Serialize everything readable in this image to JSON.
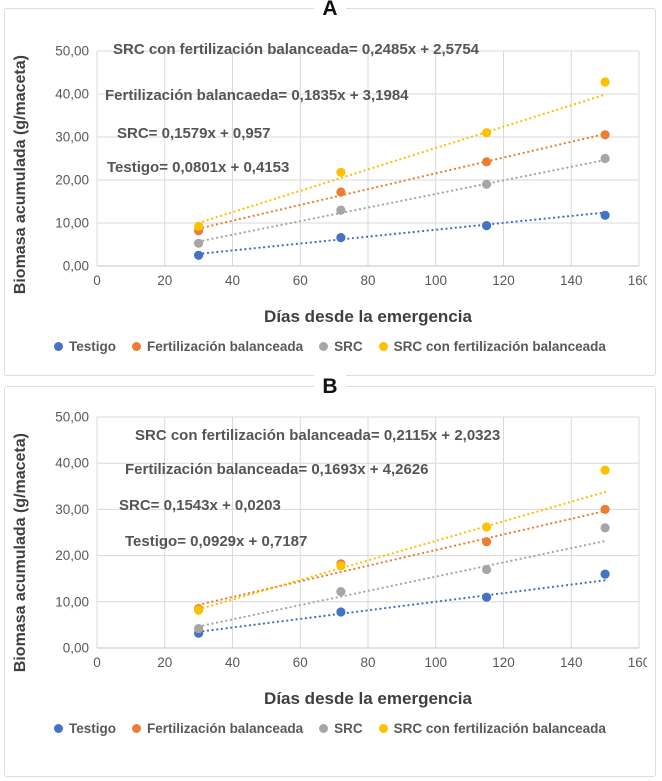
{
  "colors": {
    "testigo": "#4472C4",
    "fertilizacion": "#ED7D31",
    "src": "#A6A6A6",
    "src_fert": "#FFC000",
    "grid": "#D9D9D9",
    "axis_line": "#C6C6C6",
    "tick_text": "#595959",
    "panel_border": "#D9DEE6"
  },
  "legend": {
    "items": [
      {
        "label": "Testigo",
        "color_key": "testigo"
      },
      {
        "label": "Fertilización balanceada",
        "color_key": "fertilizacion"
      },
      {
        "label": "SRC",
        "color_key": "src"
      },
      {
        "label": "SRC con fertilización balanceada",
        "color_key": "src_fert"
      }
    ]
  },
  "chart_data": [
    {
      "id": "A",
      "type": "scatter",
      "title": "A",
      "xlabel": "Días desde la emergencia",
      "ylabel": "Biomasa acumulada (g/maceta)",
      "xlim": [
        0,
        160
      ],
      "ylim": [
        0,
        50
      ],
      "xticks": [
        0,
        20,
        40,
        60,
        80,
        100,
        120,
        140,
        160
      ],
      "ytick_labels": [
        "0,00",
        "10,00",
        "20,00",
        "30,00",
        "40,00",
        "50,00"
      ],
      "grid": true,
      "legend_position": "bottom",
      "x": [
        30,
        72,
        115,
        150
      ],
      "series": [
        {
          "name": "Testigo",
          "color_key": "testigo",
          "values": [
            2.5,
            6.6,
            9.4,
            11.8
          ],
          "trend": {
            "slope": 0.0801,
            "intercept": 0.4153
          }
        },
        {
          "name": "Fertilización balanceada",
          "color_key": "fertilizacion",
          "values": [
            8.2,
            17.2,
            24.2,
            30.5
          ],
          "trend": {
            "slope": 0.1835,
            "intercept": 3.1984
          }
        },
        {
          "name": "SRC",
          "color_key": "src",
          "values": [
            5.3,
            13.0,
            19.0,
            25.0
          ],
          "trend": {
            "slope": 0.1579,
            "intercept": 0.957
          }
        },
        {
          "name": "SRC con fertilización balanceada",
          "color_key": "src_fert",
          "values": [
            9.2,
            21.8,
            31.0,
            42.8
          ],
          "trend": {
            "slope": 0.2485,
            "intercept": 2.5754
          }
        }
      ],
      "annotations": [
        "SRC con fertilización balanceada= 0,2485x + 2,5754",
        "Fertilización balancaeda= 0,1835x + 3,1984",
        "SRC= 0,1579x + 0,957",
        "Testigo= 0,0801x + 0,4153"
      ]
    },
    {
      "id": "B",
      "type": "scatter",
      "title": "B",
      "xlabel": "Días desde la emergencia",
      "ylabel": "Biomasa acumulada (g/maceta)",
      "xlim": [
        0,
        160
      ],
      "ylim": [
        0,
        50
      ],
      "xticks": [
        0,
        20,
        40,
        60,
        80,
        100,
        120,
        140,
        160
      ],
      "ytick_labels": [
        "0,00",
        "10,00",
        "20,00",
        "30,00",
        "40,00",
        "50,00"
      ],
      "grid": true,
      "legend_position": "bottom",
      "x": [
        30,
        72,
        115,
        150
      ],
      "series": [
        {
          "name": "Testigo",
          "color_key": "testigo",
          "values": [
            3.2,
            7.8,
            11.0,
            16.0
          ],
          "trend": {
            "slope": 0.0929,
            "intercept": 0.7187
          }
        },
        {
          "name": "Fertilización balanceada",
          "color_key": "fertilizacion",
          "values": [
            8.5,
            18.2,
            23.0,
            30.0
          ],
          "trend": {
            "slope": 0.1693,
            "intercept": 4.2626
          }
        },
        {
          "name": "SRC",
          "color_key": "src",
          "values": [
            4.2,
            12.2,
            17.0,
            26.0
          ],
          "trend": {
            "slope": 0.1543,
            "intercept": 0.0203
          }
        },
        {
          "name": "SRC con fertilización balanceada",
          "color_key": "src_fert",
          "values": [
            8.2,
            17.8,
            26.2,
            38.5
          ],
          "trend": {
            "slope": 0.2115,
            "intercept": 2.0323
          }
        }
      ],
      "annotations": [
        "SRC con fertilización balanceada= 0,2115x + 2,0323",
        "Fertilización balanceada= 0,1693x + 4,2626",
        "SRC= 0,1543x + 0,0203",
        "Testigo= 0,0929x + 0,7187"
      ]
    }
  ]
}
